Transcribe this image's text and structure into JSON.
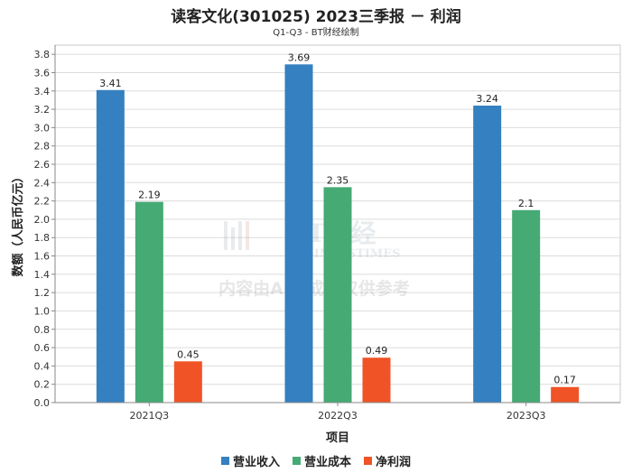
{
  "chart_data": {
    "type": "bar",
    "title": "读客文化(301025) 2023三季报 － 利润",
    "subtitle": "Q1-Q3 - BT财经绘制",
    "xlabel": "项目",
    "ylabel": "数额（人民币亿元）",
    "categories": [
      "2021Q3",
      "2022Q3",
      "2023Q3"
    ],
    "ylim": [
      0,
      3.9
    ],
    "yticks": [
      0.0,
      0.2,
      0.4,
      0.6,
      0.8,
      1.0,
      1.2,
      1.4,
      1.6,
      1.8,
      2.0,
      2.2,
      2.4,
      2.6,
      2.8,
      3.0,
      3.2,
      3.4,
      3.6,
      3.8
    ],
    "grid": true,
    "legend_position": "bottom",
    "series": [
      {
        "name": "营业收入",
        "color": "#3480c0",
        "values": [
          3.41,
          3.69,
          3.24
        ],
        "labels": [
          "3.41",
          "3.69",
          "3.24"
        ]
      },
      {
        "name": "营业成本",
        "color": "#45aa74",
        "values": [
          2.19,
          2.35,
          2.1
        ],
        "labels": [
          "2.19",
          "2.35",
          "2.1"
        ]
      },
      {
        "name": "净利润",
        "color": "#f05326",
        "values": [
          0.45,
          0.49,
          0.17
        ],
        "labels": [
          "0.45",
          "0.49",
          "0.17"
        ]
      }
    ]
  },
  "watermark": {
    "brand": "BT财经",
    "brand_en": "BUSINESSTIMES",
    "notice": "内容由AI生成，仅供参考"
  }
}
